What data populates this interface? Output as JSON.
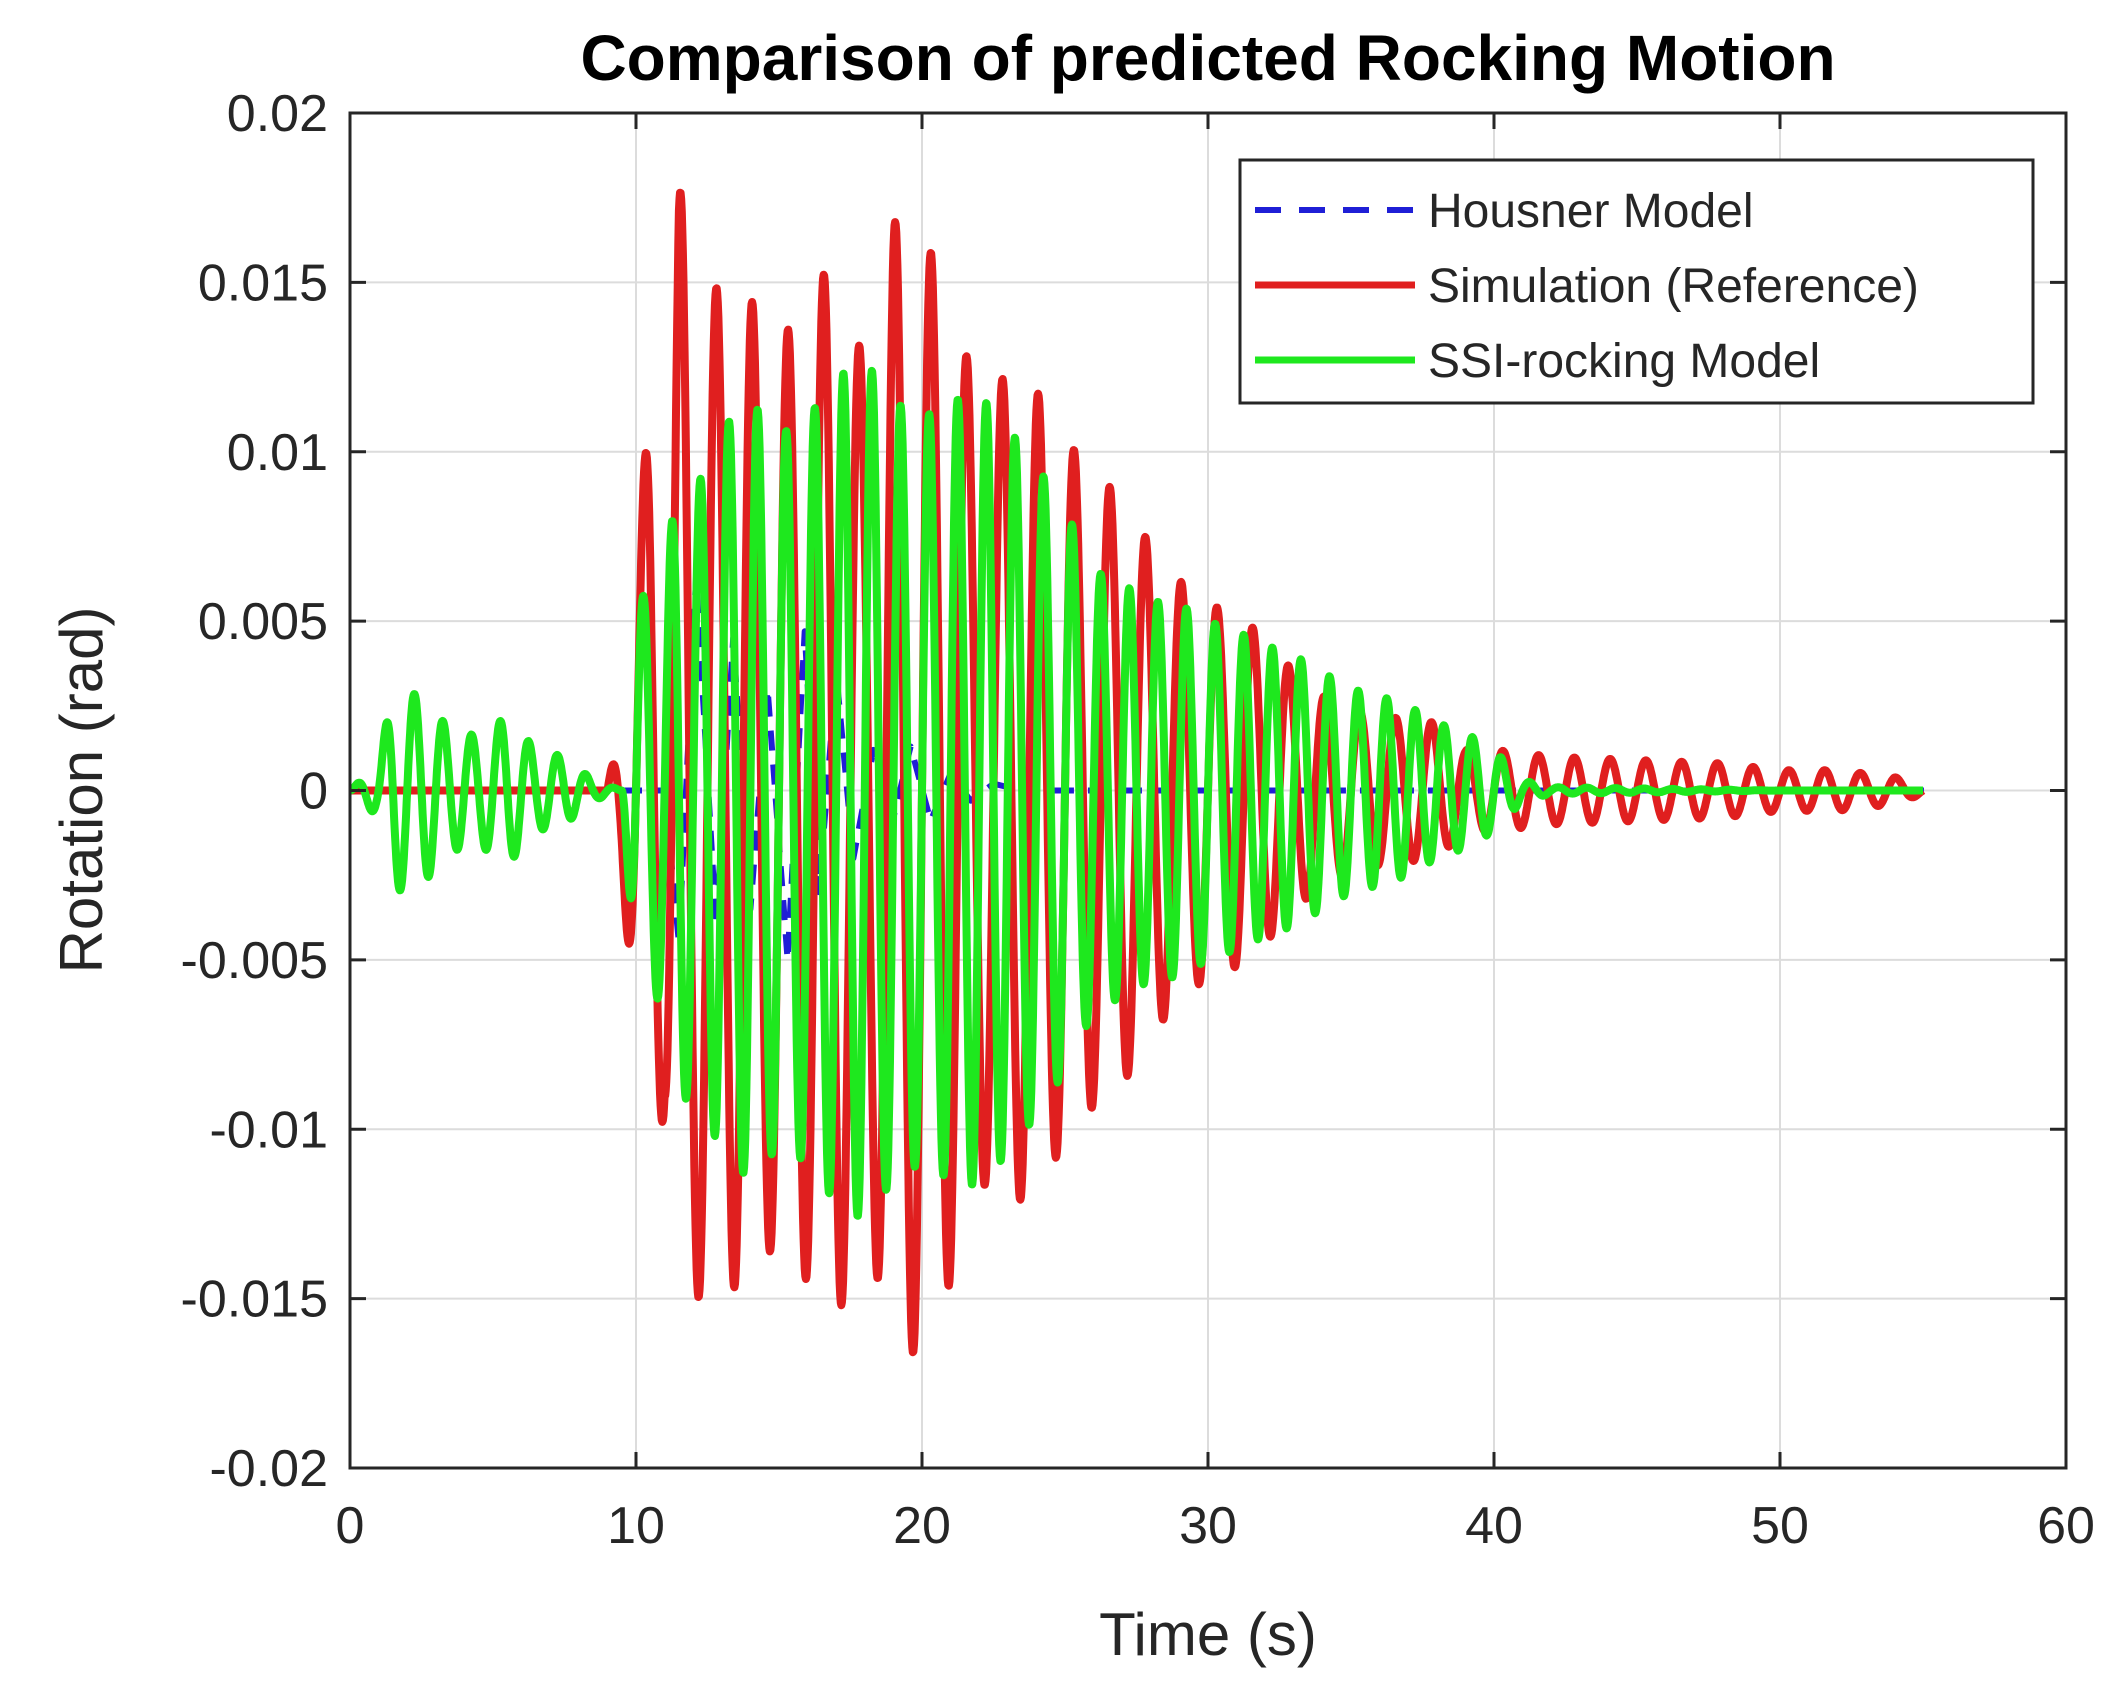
{
  "chart_data": {
    "type": "line",
    "title": "Comparison of predicted Rocking Motion",
    "xlabel": "Time (s)",
    "ylabel": "Rotation (rad)",
    "xlim": [
      0,
      60
    ],
    "ylim": [
      -0.02,
      0.02
    ],
    "x_ticks": [
      0,
      10,
      20,
      30,
      40,
      50,
      60
    ],
    "x_tick_labels": [
      "0",
      "10",
      "20",
      "30",
      "40",
      "50",
      "60"
    ],
    "y_ticks": [
      0.02,
      0.015,
      0.01,
      0.005,
      0,
      -0.005,
      -0.01,
      -0.015,
      -0.02
    ],
    "y_tick_labels": [
      "0.02",
      "0.015",
      "0.01",
      "0.005",
      "0",
      "-0.005",
      "-0.01",
      "-0.015",
      "-0.02"
    ],
    "grid": true,
    "legend_position": "top-right",
    "series": [
      {
        "name": "Housner Model",
        "color": "#1f1fd6",
        "style": "dashed",
        "x": [
          0,
          11.0,
          11.5,
          12.1,
          12.8,
          13.4,
          14.0,
          14.6,
          15.3,
          15.9,
          16.4,
          17.0,
          17.6,
          18.3,
          19.0,
          19.6,
          20.3,
          21.0,
          21.7,
          22.5,
          23.5,
          25.0,
          30.0,
          40.0,
          50.0,
          55.5
        ],
        "values": [
          0,
          0,
          -0.0045,
          0.0063,
          -0.004,
          0.0045,
          -0.0035,
          0.003,
          -0.005,
          0.0047,
          -0.003,
          0.0035,
          -0.002,
          0.0012,
          -0.0008,
          0.0013,
          -0.0009,
          0.0005,
          -0.0003,
          0.0002,
          0,
          0,
          0,
          0,
          0,
          0
        ]
      },
      {
        "name": "Simulation (Reference)",
        "color": "#e01f1f",
        "style": "solid",
        "envelope_x": [
          0,
          9.0,
          9.5,
          10.0,
          10.5,
          11.0,
          11.5,
          12.0,
          13.0,
          14.0,
          15.0,
          16.0,
          17.0,
          18.0,
          19.0,
          20.0,
          21.0,
          22.0,
          23.0,
          24.0,
          25.0,
          26.0,
          27.0,
          28.0,
          29.0,
          30.0,
          31.0,
          32.0,
          33.0,
          34.0,
          35.0,
          36.0,
          37.0,
          38.0,
          39.0,
          40.0,
          42.0,
          45.0,
          48.0,
          50.0,
          52.0,
          54.0,
          55.0
        ],
        "envelope_values": [
          0,
          0,
          0.0025,
          0.007,
          0.0115,
          0.0095,
          0.018,
          0.015,
          0.0148,
          0.0145,
          0.0132,
          0.0145,
          0.0158,
          0.0125,
          0.0168,
          0.0165,
          0.0145,
          0.0115,
          0.0123,
          0.0118,
          0.0104,
          0.0093,
          0.0087,
          0.0072,
          0.0062,
          0.0055,
          0.0052,
          0.0045,
          0.0035,
          0.0028,
          0.0024,
          0.0022,
          0.0021,
          0.002,
          0.0012,
          0.0012,
          0.001,
          0.0009,
          0.0008,
          0.0006,
          0.0006,
          0.0004,
          0.0001
        ],
        "period": 1.25
      },
      {
        "name": "SSI-rocking Model",
        "color": "#1ee81e",
        "style": "solid",
        "envelope_x": [
          0,
          1.0,
          1.5,
          2.5,
          3.5,
          4.5,
          5.5,
          6.5,
          7.5,
          8.5,
          9.5,
          10.0,
          10.5,
          11.0,
          11.5,
          12.0,
          13.0,
          14.0,
          15.0,
          16.0,
          17.0,
          18.0,
          19.0,
          20.0,
          21.0,
          22.0,
          23.0,
          24.0,
          25.0,
          26.0,
          27.0,
          28.0,
          29.0,
          30.0,
          31.0,
          32.0,
          33.0,
          34.0,
          35.0,
          36.0,
          37.0,
          38.0,
          39.0,
          40.0,
          41.0,
          42.0,
          50.0,
          55.0
        ],
        "envelope_values": [
          0,
          0.0008,
          0.003,
          0.0028,
          0.0018,
          0.0016,
          0.0022,
          0.0012,
          0.001,
          0.0003,
          0.0,
          0.0055,
          0.006,
          0.0063,
          0.0095,
          0.0087,
          0.0107,
          0.0115,
          0.0105,
          0.011,
          0.0122,
          0.0127,
          0.0115,
          0.011,
          0.0115,
          0.0117,
          0.0107,
          0.0096,
          0.0083,
          0.0065,
          0.0061,
          0.0056,
          0.0055,
          0.005,
          0.0047,
          0.0043,
          0.004,
          0.0035,
          0.003,
          0.0028,
          0.0025,
          0.002,
          0.0017,
          0.0012,
          0.0003,
          0.0001,
          0,
          0
        ],
        "period": 1.0
      }
    ]
  }
}
